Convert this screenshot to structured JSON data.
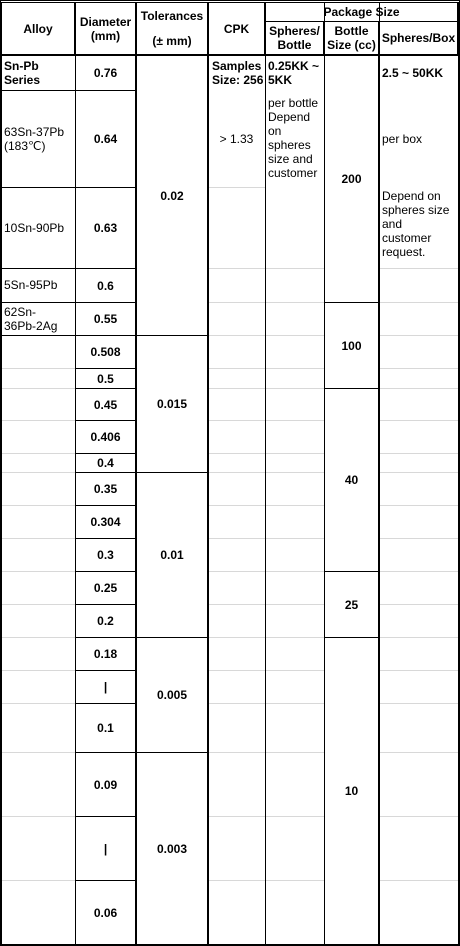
{
  "header": {
    "alloy": "Alloy",
    "diameter": "Diameter\n(mm)",
    "tolerances": "Tolerances",
    "tolerances_unit": "(± mm)",
    "cpk": "CPK",
    "package_size": "Package Size",
    "spheres_bottle": "Spheres/\nBottle",
    "bottle_size": "Bottle\nSize (cc)",
    "spheres_box": "Spheres/Box"
  },
  "alloys": [
    "Sn-Pb\nSeries",
    "63Sn-37Pb\n(183℃)",
    "10Sn-90Pb",
    "5Sn-95Pb",
    "62Sn-\n36Pb-2Ag"
  ],
  "diameters": [
    "0.76",
    "0.64",
    "0.63",
    "0.6",
    "0.55",
    "0.508",
    "0.5",
    "0.45",
    "0.406",
    "0.4",
    "0.35",
    "0.304",
    "0.3",
    "0.25",
    "0.2",
    "0.18",
    "|",
    "0.1",
    "0.09",
    "|",
    "0.06"
  ],
  "tolerances": [
    "0.02",
    "0.015",
    "0.01",
    "0.005",
    "0.003"
  ],
  "cpk": [
    "Samples\nSize: 256",
    "> 1.33"
  ],
  "spheres_bottle": [
    "0.25KK ~\n5KK",
    "per bottle\nDepend\non\nspheres\nsize and\ncustomer"
  ],
  "bottle_sizes": [
    "200",
    "100",
    "40",
    "25",
    "10"
  ],
  "spheres_box": [
    "2.5 ~ 50KK",
    "per box",
    "Depend on\nspheres size\nand\ncustomer\nrequest."
  ]
}
